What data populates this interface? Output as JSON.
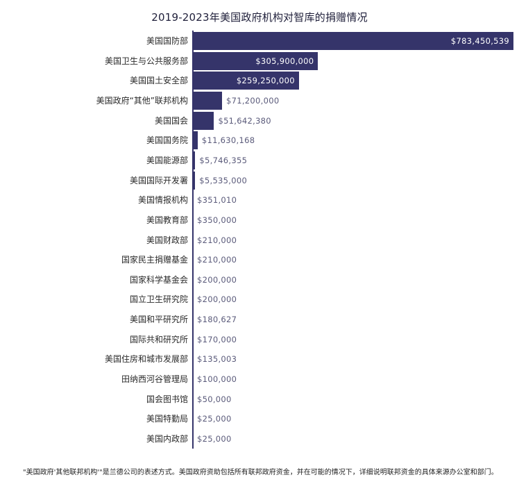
{
  "title": "2019-2023年美国政府机构对智库的捐赠情况",
  "footnote": "\"美国政府'其他联邦机构'\"是兰德公司的表述方式。美国政府资助包括所有联邦政府资金，并在可能的情况下，详细说明联邦资金的具体来源办公室和部门。",
  "colors": {
    "bar": "#35346a",
    "value_outside": "#5a5a7a",
    "value_inside": "#ffffff"
  },
  "chart_data": {
    "type": "bar",
    "orientation": "horizontal",
    "title": "2019-2023年美国政府机构对智库的捐赠情况",
    "xlabel": "",
    "ylabel": "",
    "grid": false,
    "legend": null,
    "categories": [
      "美国国防部",
      "美国卫生与公共服务部",
      "美国国土安全部",
      "美国政府“其他”联邦机构",
      "美国国会",
      "美国国务院",
      "美国能源部",
      "美国国际开发署",
      "美国情报机构",
      "美国教育部",
      "美国财政部",
      "国家民主捐赠基金",
      "国家科学基金会",
      "国立卫生研究院",
      "美国和平研究所",
      "国际共和研究所",
      "美国住房和城市发展部",
      "田纳西河谷管理局",
      "国会图书馆",
      "美国特勤局",
      "美国内政部"
    ],
    "values": [
      783450539,
      305900000,
      259250000,
      71200000,
      51642380,
      11630168,
      5746355,
      5535000,
      351010,
      350000,
      210000,
      210000,
      200000,
      200000,
      180627,
      170000,
      135003,
      100000,
      50000,
      25000,
      25000
    ],
    "value_labels": [
      "$783,450,539",
      "$305,900,000",
      "$259,250,000",
      "$71,200,000",
      "$51,642,380",
      "$11,630,168",
      "$5,746,355",
      "$5,535,000",
      "$351,010",
      "$350,000",
      "$210,000",
      "$210,000",
      "$200,000",
      "$200,000",
      "$180,627",
      "$170,000",
      "$135,003",
      "$100,000",
      "$50,000",
      "$25,000",
      "$25,000"
    ],
    "xlim": [
      0,
      783450539
    ]
  }
}
